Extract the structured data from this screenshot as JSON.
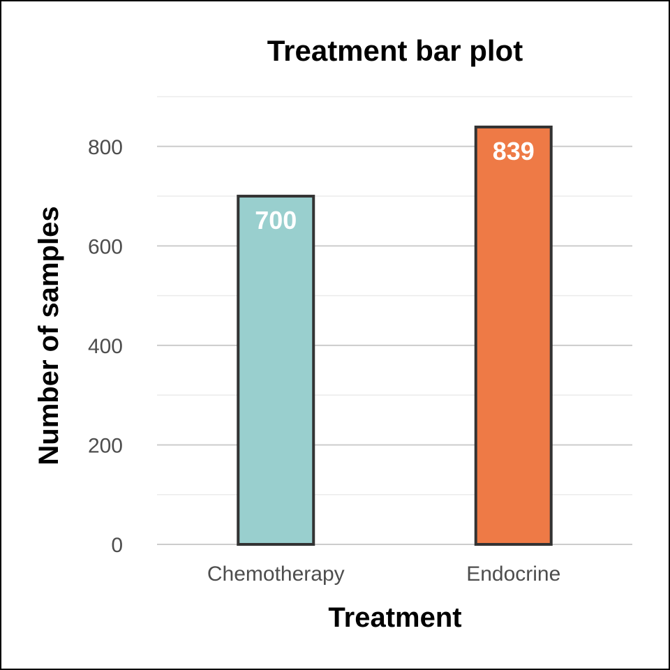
{
  "chart_data": {
    "type": "bar",
    "title": "Treatment bar plot",
    "xlabel": "Treatment",
    "ylabel": "Number of samples",
    "categories": [
      "Chemotherapy",
      "Endocrine"
    ],
    "values": [
      700,
      839
    ],
    "data_labels": [
      "700",
      "839"
    ],
    "colors": [
      "#99cfce",
      "#ee7a46"
    ],
    "bar_outline_color": "#333333",
    "ylim": [
      0,
      900
    ],
    "y_ticks": [
      0,
      200,
      400,
      600,
      800
    ],
    "y_tick_labels": [
      "0",
      "200",
      "400",
      "600",
      "800"
    ],
    "grid": true,
    "legend": "none"
  }
}
